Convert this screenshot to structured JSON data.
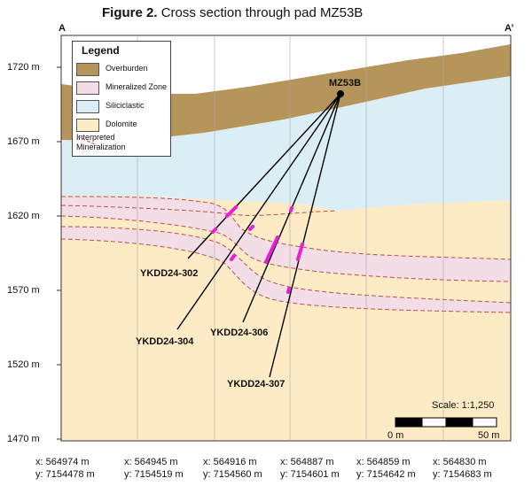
{
  "figure": {
    "label": "Figure 2.",
    "title": "Cross section through pad MZ53B"
  },
  "section": {
    "start": "A",
    "end": "A’"
  },
  "elevation_labels": [
    "1720 m",
    "1670 m",
    "1620 m",
    "1570 m",
    "1520 m",
    "1470 m"
  ],
  "legend": {
    "title": "Legend",
    "items": [
      {
        "label": "Overburden",
        "color": "#b5955a"
      },
      {
        "label": "Mineralized Zone",
        "color": "#f3dde6"
      },
      {
        "label": "Siliciclastic",
        "color": "#dbeef6"
      },
      {
        "label": "Dolomite",
        "color": "#fcebc4"
      },
      {
        "label": "Interpreted\nMineralization",
        "color": "#c0504d"
      }
    ]
  },
  "pad": "MZ53B",
  "drillholes": [
    "YKDD24-302",
    "YKDD24-304",
    "YKDD24-306",
    "YKDD24-307"
  ],
  "scale": {
    "label": "Scale: 1:1,250",
    "left": "0 m",
    "right": "50 m"
  },
  "coordinates": [
    {
      "x": "x: 564974 m",
      "y": "y: 7154478 m"
    },
    {
      "x": "x: 564945 m",
      "y": "y: 7154519 m"
    },
    {
      "x": "x: 564916 m",
      "y": "y: 7154560 m"
    },
    {
      "x": "x: 564887 m",
      "y": "y: 7154601 m"
    },
    {
      "x": "x: 564859 m",
      "y": "y: 7154642 m"
    },
    {
      "x": "x: 564830 m",
      "y": "y: 7154683 m"
    }
  ],
  "colors": {
    "overburden": "#b5955a",
    "siliciclastic": "#dbeef6",
    "dolomite": "#fcebc4",
    "mineralized": "#f3dde6",
    "interpreted_line": "#c0504d",
    "intercept": "#e81fd6"
  }
}
